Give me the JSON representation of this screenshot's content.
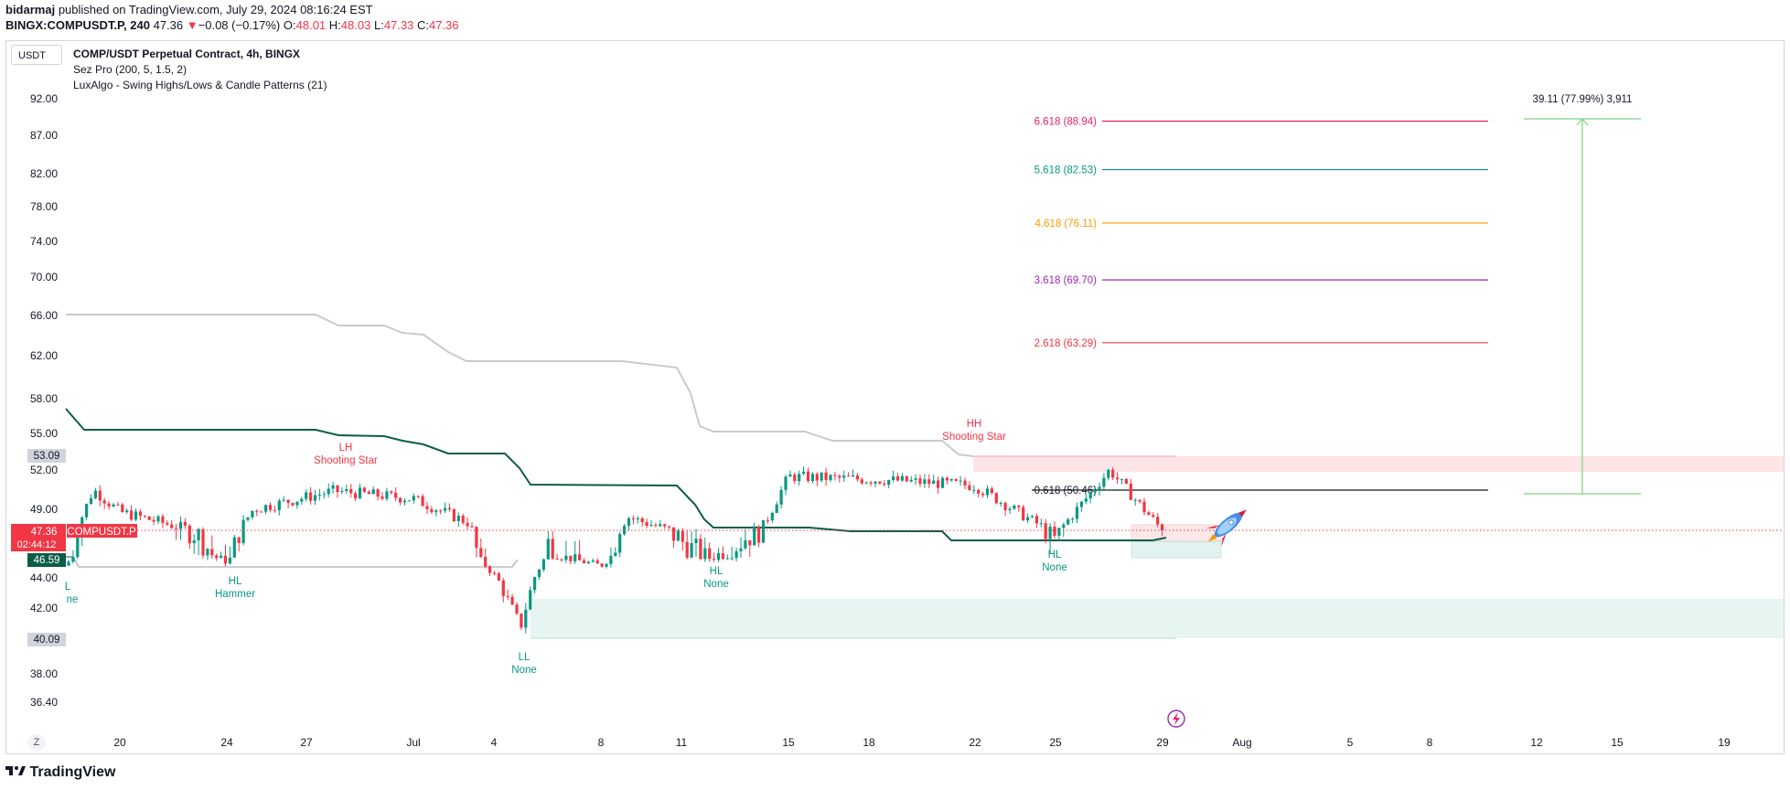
{
  "header": {
    "author": "bidarmaj",
    "published": "published on TradingView.com, July 29, 2024 08:16:24 EST",
    "symbol_line": "BINGX:COMPUSDT.P, 240",
    "last": "47.36",
    "change_arrow": "▼",
    "change": "−0.08 (−0.17%)",
    "o_label": "O:",
    "o": "48.01",
    "h_label": "H:",
    "h": "48.03",
    "l_label": "L:",
    "l": "47.33",
    "c_label": "C:",
    "c": "47.36"
  },
  "currency_button": "USDT",
  "legend": {
    "main": "COMP/USDT Perpetual Contract, 4h, BINGX",
    "ind1": "Sez Pro (200, 5, 1.5, 2)",
    "ind2": "LuxAlgo - Swing Highs/Lows & Candle Patterns (21)"
  },
  "price_badges": {
    "price": "47.36",
    "ticker": "COMPUSDT.P",
    "countdown": "02:44:12",
    "stop": "46.59",
    "top_zone": "53.09",
    "bottom_zone": "40.09"
  },
  "measure_label": "39.11 (77.99%) 3,911",
  "fib_levels": [
    {
      "label": "6.618 (88.94)",
      "price": 88.94,
      "color": "#e91e63"
    },
    {
      "label": "5.618 (82.53)",
      "price": 82.53,
      "color": "#089981"
    },
    {
      "label": "4.618 (76.11)",
      "price": 76.11,
      "color": "#ff9800"
    },
    {
      "label": "3.618 (69.70)",
      "price": 69.7,
      "color": "#9c27b0"
    },
    {
      "label": "2.618 (63.29)",
      "price": 63.29,
      "color": "#f23645"
    },
    {
      "label": "0.618 (50.46)",
      "price": 50.46,
      "color": "#131722"
    }
  ],
  "annotations": [
    {
      "top": "LH",
      "bottom": "Shooting Star",
      "color": "#f23645"
    },
    {
      "top": "HH",
      "bottom": "Shooting Star",
      "color": "#f23645"
    },
    {
      "top": "HL",
      "bottom": "Hammer",
      "color": "#089981"
    },
    {
      "top": "LL",
      "bottom": "None",
      "color": "#089981"
    },
    {
      "top": "HL",
      "bottom": "None",
      "color": "#089981"
    },
    {
      "top": "HL",
      "bottom": "None",
      "color": "#089981"
    },
    {
      "top": "L",
      "bottom": "ne",
      "color": "#089981"
    }
  ],
  "chart_data": {
    "type": "candlestick",
    "y_ticks": [
      "92.00",
      "87.00",
      "82.00",
      "78.00",
      "74.00",
      "70.00",
      "66.00",
      "62.00",
      "58.00",
      "55.00",
      "52.00",
      "49.00",
      "44.00",
      "42.00",
      "38.00",
      "36.40"
    ],
    "x_ticks": [
      "20",
      "24",
      "27",
      "Jul",
      "4",
      "8",
      "11",
      "15",
      "18",
      "22",
      "25",
      "29",
      "Aug",
      "5",
      "8",
      "12",
      "15",
      "19"
    ],
    "ohlc_anchor_closes": [
      {
        "date": "Jun 17",
        "price": 45.5
      },
      {
        "date": "Jun 18",
        "price": 50.5
      },
      {
        "date": "Jun 20",
        "price": 48.8
      },
      {
        "date": "Jun 23",
        "price": 47.2
      },
      {
        "date": "Jun 24",
        "price": 46.0
      },
      {
        "date": "Jun 25",
        "price": 49.0
      },
      {
        "date": "Jun 28",
        "price": 50.4
      },
      {
        "date": "Jul 1",
        "price": 49.8
      },
      {
        "date": "Jul 3",
        "price": 48.0
      },
      {
        "date": "Jul 5",
        "price": 40.8
      },
      {
        "date": "Jul 6",
        "price": 47.0
      },
      {
        "date": "Jul 8",
        "price": 45.5
      },
      {
        "date": "Jul 9",
        "price": 48.4
      },
      {
        "date": "Jul 12",
        "price": 46.4
      },
      {
        "date": "Jul 14",
        "price": 47.5
      },
      {
        "date": "Jul 15",
        "price": 51.5
      },
      {
        "date": "Jul 19",
        "price": 51.2
      },
      {
        "date": "Jul 22",
        "price": 50.8
      },
      {
        "date": "Jul 25",
        "price": 47.0
      },
      {
        "date": "Jul 27",
        "price": 52.0
      },
      {
        "date": "Jul 29",
        "price": 47.36
      }
    ],
    "last_price": 47.36,
    "ylim": [
      35.8,
      95.0
    ]
  },
  "colors": {
    "up": "#089981",
    "down": "#f23645",
    "ma_dark": "#0b5d48",
    "ma_light": "#c8cad0",
    "measure": "#7ed37e"
  },
  "brand": "TradingView",
  "zoom_button": "Z"
}
